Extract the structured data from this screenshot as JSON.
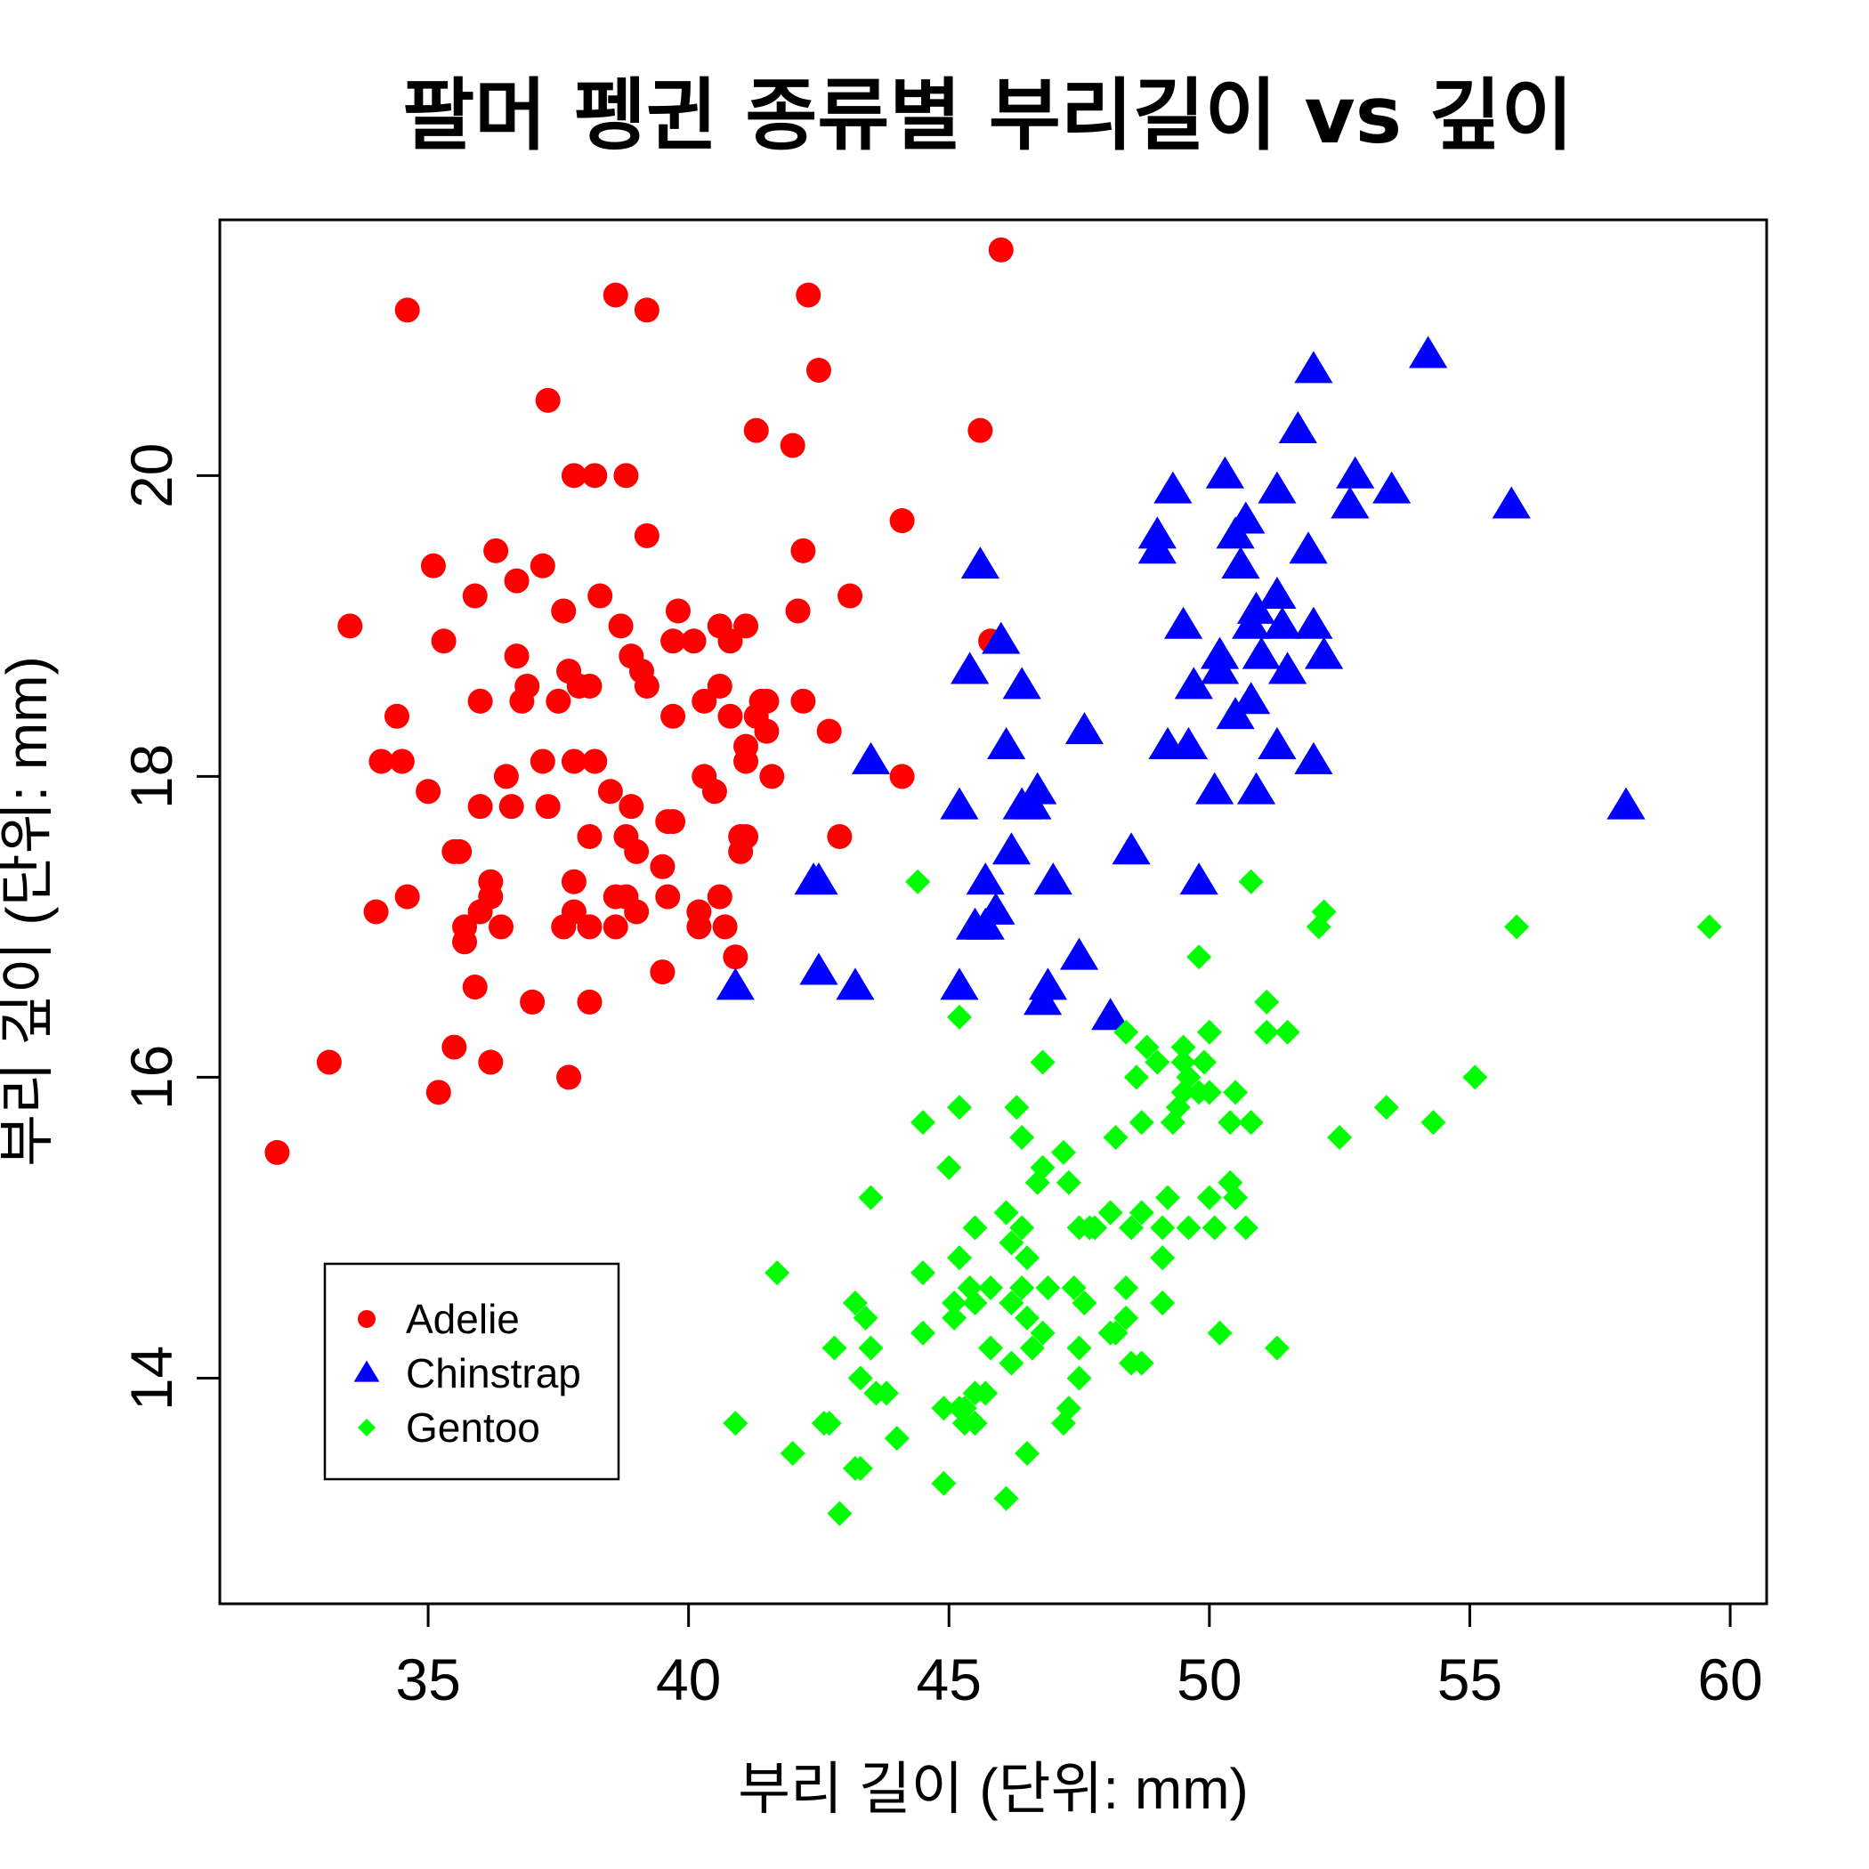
{
  "chart_data": {
    "type": "scatter",
    "title": "팔머 펭귄 종류별 부리길이 vs 깊이",
    "xlabel": "부리 길이 (단위: mm)",
    "ylabel": "부리 깊이 (단위: mm)",
    "xlim": [
      31.0,
      60.7
    ],
    "ylim": [
      12.5,
      21.7
    ],
    "xticks": [
      35,
      40,
      45,
      50,
      55,
      60
    ],
    "yticks": [
      14,
      16,
      18,
      20
    ],
    "grid": false,
    "legend_position": "bottom-left",
    "series": [
      {
        "name": "Adelie",
        "color": "#ff0000",
        "marker": "circle",
        "points": [
          [
            32.1,
            15.5
          ],
          [
            33.1,
            16.1
          ],
          [
            33.5,
            19.0
          ],
          [
            34.0,
            17.1
          ],
          [
            34.1,
            18.1
          ],
          [
            34.4,
            18.4
          ],
          [
            34.5,
            18.1
          ],
          [
            34.6,
            17.2
          ],
          [
            34.6,
            21.1
          ],
          [
            35.0,
            17.9
          ],
          [
            35.1,
            19.4
          ],
          [
            35.2,
            15.9
          ],
          [
            35.3,
            18.9
          ],
          [
            35.5,
            16.2
          ],
          [
            35.5,
            17.5
          ],
          [
            35.6,
            17.5
          ],
          [
            35.7,
            16.9
          ],
          [
            35.7,
            17.0
          ],
          [
            35.9,
            16.6
          ],
          [
            35.9,
            19.2
          ],
          [
            36.0,
            17.1
          ],
          [
            36.0,
            17.8
          ],
          [
            36.0,
            18.5
          ],
          [
            36.2,
            16.1
          ],
          [
            36.2,
            17.2
          ],
          [
            36.2,
            17.3
          ],
          [
            36.3,
            19.5
          ],
          [
            36.4,
            17.0
          ],
          [
            36.5,
            18.0
          ],
          [
            36.6,
            17.8
          ],
          [
            36.7,
            18.8
          ],
          [
            36.7,
            19.3
          ],
          [
            36.8,
            18.5
          ],
          [
            36.9,
            18.6
          ],
          [
            37.0,
            16.5
          ],
          [
            37.2,
            18.1
          ],
          [
            37.2,
            19.4
          ],
          [
            37.3,
            17.8
          ],
          [
            37.3,
            20.5
          ],
          [
            37.5,
            18.5
          ],
          [
            37.6,
            17.0
          ],
          [
            37.6,
            19.1
          ],
          [
            37.7,
            16.0
          ],
          [
            37.7,
            18.7
          ],
          [
            37.8,
            17.1
          ],
          [
            37.8,
            17.3
          ],
          [
            37.8,
            18.1
          ],
          [
            37.8,
            20.0
          ],
          [
            37.9,
            18.6
          ],
          [
            38.1,
            16.5
          ],
          [
            38.1,
            17.0
          ],
          [
            38.1,
            17.6
          ],
          [
            38.1,
            18.6
          ],
          [
            38.2,
            18.1
          ],
          [
            38.2,
            20.0
          ],
          [
            38.3,
            19.2
          ],
          [
            38.5,
            17.9
          ],
          [
            38.6,
            17.0
          ],
          [
            38.6,
            17.2
          ],
          [
            38.6,
            21.2
          ],
          [
            38.7,
            19.0
          ],
          [
            38.8,
            17.2
          ],
          [
            38.8,
            17.6
          ],
          [
            38.8,
            20.0
          ],
          [
            38.9,
            17.8
          ],
          [
            38.9,
            18.8
          ],
          [
            39.0,
            17.1
          ],
          [
            39.0,
            17.5
          ],
          [
            39.1,
            18.7
          ],
          [
            39.2,
            18.6
          ],
          [
            39.2,
            19.6
          ],
          [
            39.2,
            21.1
          ],
          [
            39.5,
            16.7
          ],
          [
            39.5,
            17.4
          ],
          [
            39.6,
            17.2
          ],
          [
            39.6,
            17.7
          ],
          [
            39.7,
            17.7
          ],
          [
            39.7,
            18.4
          ],
          [
            39.7,
            18.9
          ],
          [
            39.8,
            19.1
          ],
          [
            40.1,
            18.9
          ],
          [
            40.2,
            17.0
          ],
          [
            40.2,
            17.1
          ],
          [
            40.3,
            18.0
          ],
          [
            40.3,
            18.5
          ],
          [
            40.5,
            17.9
          ],
          [
            40.6,
            17.2
          ],
          [
            40.6,
            18.6
          ],
          [
            40.6,
            19.0
          ],
          [
            40.7,
            17.0
          ],
          [
            40.8,
            18.4
          ],
          [
            40.8,
            18.9
          ],
          [
            40.9,
            16.8
          ],
          [
            41.0,
            17.5
          ],
          [
            41.0,
            17.6
          ],
          [
            41.1,
            17.6
          ],
          [
            41.1,
            18.1
          ],
          [
            41.1,
            18.2
          ],
          [
            41.1,
            19.0
          ],
          [
            41.3,
            18.4
          ],
          [
            41.3,
            20.3
          ],
          [
            41.4,
            18.5
          ],
          [
            41.5,
            18.3
          ],
          [
            41.5,
            18.5
          ],
          [
            41.6,
            18.0
          ],
          [
            42.0,
            20.2
          ],
          [
            42.1,
            19.1
          ],
          [
            42.2,
            18.5
          ],
          [
            42.2,
            19.5
          ],
          [
            42.3,
            21.2
          ],
          [
            42.5,
            20.7
          ],
          [
            42.7,
            18.3
          ],
          [
            42.9,
            17.6
          ],
          [
            43.1,
            19.2
          ],
          [
            44.1,
            18.0
          ],
          [
            44.1,
            19.7
          ],
          [
            45.6,
            20.3
          ],
          [
            45.8,
            18.9
          ],
          [
            46.0,
            21.5
          ]
        ]
      },
      {
        "name": "Chinstrap",
        "color": "#0000ff",
        "marker": "triangle",
        "points": [
          [
            40.9,
            16.6
          ],
          [
            42.4,
            17.3
          ],
          [
            42.5,
            16.7
          ],
          [
            42.5,
            17.3
          ],
          [
            43.2,
            16.6
          ],
          [
            43.5,
            18.1
          ],
          [
            45.2,
            16.6
          ],
          [
            45.2,
            17.8
          ],
          [
            45.4,
            18.7
          ],
          [
            45.5,
            17.0
          ],
          [
            45.6,
            19.4
          ],
          [
            45.7,
            17.0
          ],
          [
            45.7,
            17.3
          ],
          [
            45.9,
            17.1
          ],
          [
            46.0,
            18.9
          ],
          [
            46.1,
            18.2
          ],
          [
            46.2,
            17.5
          ],
          [
            46.4,
            17.8
          ],
          [
            46.4,
            18.6
          ],
          [
            46.6,
            17.8
          ],
          [
            46.7,
            17.9
          ],
          [
            46.8,
            16.5
          ],
          [
            46.9,
            16.6
          ],
          [
            47.0,
            17.3
          ],
          [
            47.5,
            16.8
          ],
          [
            47.6,
            18.3
          ],
          [
            48.1,
            16.4
          ],
          [
            48.5,
            17.5
          ],
          [
            49.0,
            19.5
          ],
          [
            49.0,
            19.6
          ],
          [
            49.2,
            18.2
          ],
          [
            49.3,
            19.9
          ],
          [
            49.5,
            19.0
          ],
          [
            49.6,
            18.2
          ],
          [
            49.7,
            18.6
          ],
          [
            49.8,
            17.3
          ],
          [
            50.1,
            17.9
          ],
          [
            50.2,
            18.7
          ],
          [
            50.2,
            18.8
          ],
          [
            50.3,
            20.0
          ],
          [
            50.5,
            18.4
          ],
          [
            50.5,
            19.6
          ],
          [
            50.6,
            19.4
          ],
          [
            50.7,
            19.7
          ],
          [
            50.8,
            18.5
          ],
          [
            50.8,
            19.0
          ],
          [
            50.9,
            17.9
          ],
          [
            50.9,
            19.1
          ],
          [
            51.0,
            18.8
          ],
          [
            51.3,
            18.2
          ],
          [
            51.3,
            19.2
          ],
          [
            51.3,
            19.9
          ],
          [
            51.4,
            19.0
          ],
          [
            51.5,
            18.7
          ],
          [
            51.7,
            20.3
          ],
          [
            51.9,
            19.5
          ],
          [
            52.0,
            18.1
          ],
          [
            52.0,
            19.0
          ],
          [
            52.0,
            20.7
          ],
          [
            52.2,
            18.8
          ],
          [
            52.7,
            19.8
          ],
          [
            52.8,
            20.0
          ],
          [
            53.5,
            19.9
          ],
          [
            54.2,
            20.8
          ],
          [
            55.8,
            19.8
          ],
          [
            58.0,
            17.8
          ]
        ]
      },
      {
        "name": "Gentoo",
        "color": "#00ff00",
        "marker": "diamond",
        "points": [
          [
            40.9,
            13.7
          ],
          [
            41.7,
            14.7
          ],
          [
            42.0,
            13.5
          ],
          [
            42.6,
            13.7
          ],
          [
            42.7,
            13.7
          ],
          [
            42.8,
            14.2
          ],
          [
            42.9,
            13.1
          ],
          [
            43.2,
            13.4
          ],
          [
            43.2,
            14.5
          ],
          [
            43.3,
            13.4
          ],
          [
            43.3,
            14.0
          ],
          [
            43.4,
            14.4
          ],
          [
            43.5,
            14.2
          ],
          [
            43.5,
            15.2
          ],
          [
            43.6,
            13.9
          ],
          [
            43.8,
            13.9
          ],
          [
            44.0,
            13.6
          ],
          [
            44.4,
            17.3
          ],
          [
            44.5,
            14.3
          ],
          [
            44.5,
            14.7
          ],
          [
            44.5,
            15.7
          ],
          [
            44.9,
            13.3
          ],
          [
            44.9,
            13.8
          ],
          [
            45.0,
            15.4
          ],
          [
            45.1,
            14.4
          ],
          [
            45.1,
            14.5
          ],
          [
            45.2,
            13.8
          ],
          [
            45.2,
            14.8
          ],
          [
            45.2,
            15.8
          ],
          [
            45.2,
            16.4
          ],
          [
            45.3,
            13.7
          ],
          [
            45.3,
            13.8
          ],
          [
            45.4,
            14.6
          ],
          [
            45.5,
            13.7
          ],
          [
            45.5,
            13.9
          ],
          [
            45.5,
            14.5
          ],
          [
            45.5,
            15.0
          ],
          [
            45.7,
            13.9
          ],
          [
            45.8,
            14.2
          ],
          [
            45.8,
            14.6
          ],
          [
            46.1,
            13.2
          ],
          [
            46.1,
            15.1
          ],
          [
            46.2,
            14.1
          ],
          [
            46.2,
            14.5
          ],
          [
            46.2,
            14.9
          ],
          [
            46.3,
            15.8
          ],
          [
            46.4,
            14.6
          ],
          [
            46.4,
            15.0
          ],
          [
            46.4,
            15.6
          ],
          [
            46.5,
            13.5
          ],
          [
            46.5,
            14.4
          ],
          [
            46.5,
            14.8
          ],
          [
            46.6,
            14.2
          ],
          [
            46.7,
            15.3
          ],
          [
            46.8,
            14.3
          ],
          [
            46.8,
            15.4
          ],
          [
            46.8,
            16.1
          ],
          [
            46.9,
            14.6
          ],
          [
            47.2,
            13.7
          ],
          [
            47.2,
            15.5
          ],
          [
            47.3,
            13.8
          ],
          [
            47.3,
            15.3
          ],
          [
            47.4,
            14.6
          ],
          [
            47.5,
            14.0
          ],
          [
            47.5,
            14.2
          ],
          [
            47.5,
            15.0
          ],
          [
            47.6,
            14.5
          ],
          [
            47.7,
            15.0
          ],
          [
            47.8,
            15.0
          ],
          [
            48.1,
            14.3
          ],
          [
            48.1,
            15.1
          ],
          [
            48.2,
            14.3
          ],
          [
            48.2,
            15.6
          ],
          [
            48.4,
            14.4
          ],
          [
            48.4,
            14.6
          ],
          [
            48.4,
            16.3
          ],
          [
            48.5,
            14.1
          ],
          [
            48.5,
            15.0
          ],
          [
            48.6,
            16.0
          ],
          [
            48.7,
            14.1
          ],
          [
            48.7,
            15.1
          ],
          [
            48.7,
            15.7
          ],
          [
            48.8,
            16.2
          ],
          [
            49.0,
            16.1
          ],
          [
            49.1,
            14.5
          ],
          [
            49.1,
            14.8
          ],
          [
            49.1,
            15.0
          ],
          [
            49.2,
            15.2
          ],
          [
            49.3,
            15.7
          ],
          [
            49.4,
            15.8
          ],
          [
            49.5,
            15.9
          ],
          [
            49.5,
            16.1
          ],
          [
            49.5,
            16.2
          ],
          [
            49.6,
            15.0
          ],
          [
            49.6,
            16.0
          ],
          [
            49.8,
            15.9
          ],
          [
            49.8,
            16.8
          ],
          [
            49.9,
            16.1
          ],
          [
            50.0,
            15.2
          ],
          [
            50.0,
            15.9
          ],
          [
            50.0,
            16.3
          ],
          [
            50.1,
            15.0
          ],
          [
            50.2,
            14.3
          ],
          [
            50.4,
            15.3
          ],
          [
            50.4,
            15.7
          ],
          [
            50.5,
            15.2
          ],
          [
            50.5,
            15.9
          ],
          [
            50.7,
            15.0
          ],
          [
            50.8,
            15.7
          ],
          [
            50.8,
            17.3
          ],
          [
            51.1,
            16.3
          ],
          [
            51.1,
            16.5
          ],
          [
            51.3,
            14.2
          ],
          [
            51.5,
            16.3
          ],
          [
            52.1,
            17.0
          ],
          [
            52.2,
            17.1
          ],
          [
            52.5,
            15.6
          ],
          [
            53.4,
            15.8
          ],
          [
            54.3,
            15.7
          ],
          [
            55.1,
            16.0
          ],
          [
            55.9,
            17.0
          ],
          [
            59.6,
            17.0
          ]
        ]
      }
    ]
  }
}
